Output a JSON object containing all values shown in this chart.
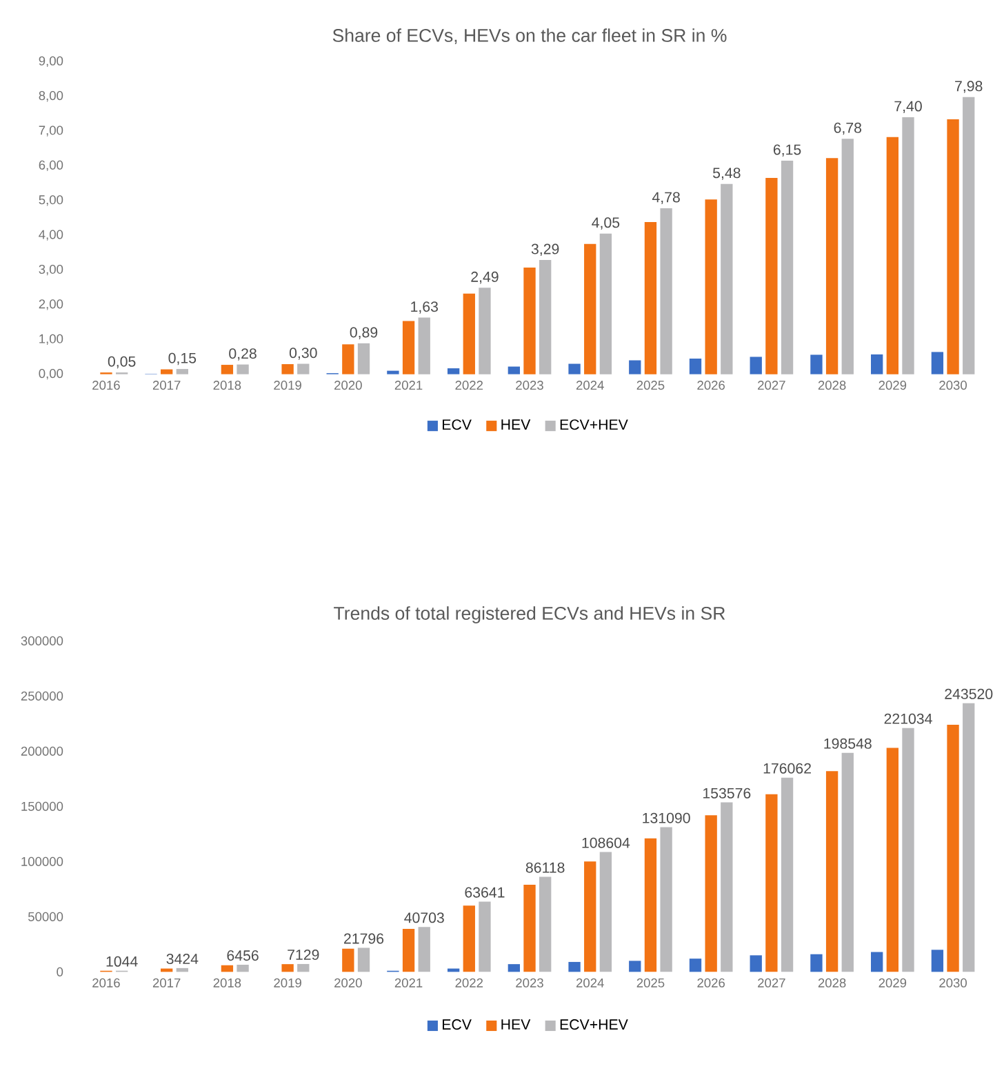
{
  "chart_data": [
    {
      "type": "bar",
      "title": "Share of ECVs, HEVs  on the car fleet in SR in %",
      "categories": [
        "2016",
        "2017",
        "2018",
        "2019",
        "2020",
        "2021",
        "2022",
        "2023",
        "2024",
        "2025",
        "2026",
        "2027",
        "2028",
        "2029",
        "2030"
      ],
      "series": [
        {
          "name": "ECV",
          "color": "#3b6fc6",
          "values": [
            0,
            0.01,
            null,
            null,
            0.03,
            0.1,
            0.17,
            0.22,
            0.3,
            0.4,
            0.45,
            0.5,
            0.56,
            0.57,
            0.64
          ]
        },
        {
          "name": "HEV",
          "color": "#f27314",
          "values": [
            0.05,
            0.14,
            0.27,
            0.29,
            0.86,
            1.53,
            2.32,
            3.07,
            3.75,
            4.38,
            5.03,
            5.65,
            6.22,
            6.83,
            7.34
          ]
        },
        {
          "name": "ECV+HEV",
          "color": "#b9b9bb",
          "values": [
            0.05,
            0.15,
            0.28,
            0.3,
            0.89,
            1.63,
            2.49,
            3.29,
            4.05,
            4.78,
            5.48,
            6.15,
            6.78,
            7.4,
            7.98
          ],
          "value_labels": [
            "0,05",
            "0,15",
            "0,28",
            "0,30",
            "0,89",
            "1,63",
            "2,49",
            "3,29",
            "4,05",
            "4,78",
            "5,48",
            "6,15",
            "6,78",
            "7,40",
            "7,98"
          ]
        }
      ],
      "ylim": [
        0,
        9
      ],
      "yticks": [
        {
          "value": 0,
          "label": "0,00"
        },
        {
          "value": 1,
          "label": "1,00"
        },
        {
          "value": 2,
          "label": "2,00"
        },
        {
          "value": 3,
          "label": "3,00"
        },
        {
          "value": 4,
          "label": "4,00"
        },
        {
          "value": 5,
          "label": "5,00"
        },
        {
          "value": 6,
          "label": "6,00"
        },
        {
          "value": 7,
          "label": "7,00"
        },
        {
          "value": 8,
          "label": "8,00"
        },
        {
          "value": 9,
          "label": "9,00"
        }
      ],
      "grid": false,
      "legend": "bottom"
    },
    {
      "type": "bar",
      "title": "Trends of total registered  ECVs and   HEVs  in SR",
      "categories": [
        "2016",
        "2017",
        "2018",
        "2019",
        "2020",
        "2021",
        "2022",
        "2023",
        "2024",
        "2025",
        "2026",
        "2027",
        "2028",
        "2029",
        "2030"
      ],
      "series": [
        {
          "name": "ECV",
          "color": "#3b6fc6",
          "values": [
            0,
            0,
            0,
            0,
            0,
            1000,
            3000,
            7000,
            9000,
            10000,
            12000,
            15000,
            16000,
            18000,
            20000
          ]
        },
        {
          "name": "HEV",
          "color": "#f27314",
          "values": [
            1000,
            3000,
            6000,
            7000,
            21000,
            39000,
            60000,
            79000,
            100000,
            121000,
            142000,
            161000,
            182000,
            203000,
            224000
          ]
        },
        {
          "name": "ECV+HEV",
          "color": "#b9b9bb",
          "values": [
            1044,
            3424,
            6456,
            7129,
            21796,
            40703,
            63641,
            86118,
            108604,
            131090,
            153576,
            176062,
            198548,
            221034,
            243520
          ],
          "value_labels": [
            "1044",
            "3424",
            "6456",
            "7129",
            "21796",
            "40703",
            "63641",
            "86118",
            "108604",
            "131090",
            "153576",
            "176062",
            "198548",
            "221034",
            "243520"
          ]
        }
      ],
      "ylim": [
        0,
        300000
      ],
      "yticks": [
        0,
        50000,
        100000,
        150000,
        200000,
        250000,
        300000
      ],
      "grid": false,
      "legend": "bottom"
    }
  ]
}
